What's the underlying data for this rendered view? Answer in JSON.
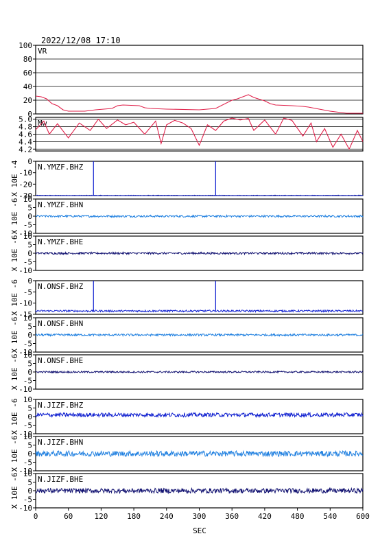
{
  "header": {
    "timestamp": "2022/12/08 17:10"
  },
  "x_axis": {
    "label": "SEC",
    "range": [
      0,
      600
    ],
    "ticks": [
      "0",
      "60",
      "120",
      "180",
      "240",
      "300",
      "360",
      "420",
      "480",
      "540",
      "600"
    ]
  },
  "colors": {
    "vr": "#e0204a",
    "mw": "#e0204a",
    "z": "#1020d0",
    "n": "#2080e0",
    "e": "#101070"
  },
  "chart_data": [
    {
      "type": "line",
      "title": "VR",
      "ylabel": "",
      "ylim": [
        0,
        100
      ],
      "yticks": [
        "0",
        "20",
        "40",
        "60",
        "80",
        "100"
      ],
      "grid": true,
      "series": [
        {
          "x": [
            0,
            10,
            20,
            30,
            40,
            50,
            60,
            90,
            100,
            110,
            140,
            150,
            160,
            190,
            200,
            210,
            240,
            300,
            330,
            360,
            370,
            390,
            400,
            420,
            430,
            440,
            470,
            490,
            500,
            520,
            540,
            560,
            570,
            600
          ],
          "values": [
            26,
            25,
            22,
            15,
            12,
            6,
            4,
            4,
            5,
            6,
            8,
            12,
            13,
            12,
            9,
            8,
            7,
            6,
            8,
            20,
            22,
            28,
            24,
            19,
            15,
            13,
            12,
            11,
            10,
            7,
            4,
            2,
            1,
            1
          ]
        }
      ]
    },
    {
      "type": "line",
      "title": "Mw",
      "ylabel": "",
      "ylim": [
        4.15,
        5.05
      ],
      "yticks": [
        "4.2",
        "4.4",
        "4.6",
        "4.8",
        "5.0"
      ],
      "grid": true,
      "series": [
        {
          "x": [
            0,
            15,
            25,
            40,
            60,
            80,
            100,
            115,
            130,
            150,
            165,
            180,
            200,
            220,
            230,
            240,
            255,
            270,
            285,
            300,
            315,
            330,
            345,
            360,
            375,
            390,
            400,
            420,
            440,
            455,
            470,
            490,
            505,
            515,
            530,
            545,
            560,
            575,
            590,
            600
          ],
          "values": [
            4.72,
            4.95,
            4.6,
            4.88,
            4.5,
            4.9,
            4.7,
            5.0,
            4.75,
            4.98,
            4.85,
            4.92,
            4.6,
            4.95,
            4.35,
            4.85,
            4.97,
            4.9,
            4.75,
            4.3,
            4.85,
            4.7,
            4.95,
            5.03,
            4.98,
            5.02,
            4.7,
            4.98,
            4.6,
            5.03,
            4.97,
            4.55,
            4.9,
            4.4,
            4.75,
            4.25,
            4.6,
            4.2,
            4.7,
            4.4
          ]
        }
      ]
    },
    {
      "type": "line",
      "title": "N.YMZF.BHZ",
      "ylabel": "X 10E -4",
      "ylim": [
        -30,
        0
      ],
      "yticks": [
        "-30",
        "-20",
        "-10",
        "0"
      ],
      "flipped": true,
      "component": "z",
      "baseline": -30,
      "spikes": [
        [
          106,
          0
        ],
        [
          330,
          0
        ]
      ],
      "noise_amp": 0.4
    },
    {
      "type": "line",
      "title": "N.YMZF.BHN",
      "ylabel": "X 10E -6",
      "ylim": [
        -10,
        10
      ],
      "yticks": [
        "-10",
        "-5",
        "0",
        "5",
        "10"
      ],
      "component": "n",
      "baseline": 0,
      "noise_amp": 0.6
    },
    {
      "type": "line",
      "title": "N.YMZF.BHE",
      "ylabel": "X 10E -6",
      "ylim": [
        -10,
        10
      ],
      "yticks": [
        "-10",
        "-5",
        "0",
        "5",
        "10"
      ],
      "component": "e",
      "baseline": 0,
      "noise_amp": 0.6
    },
    {
      "type": "line",
      "title": "N.ONSF.BHZ",
      "ylabel": "X 10E -6",
      "ylim": [
        -15,
        0
      ],
      "yticks": [
        "-15",
        "-10",
        "-5",
        "0"
      ],
      "flipped": true,
      "component": "z",
      "baseline": -13.5,
      "spikes": [
        [
          106,
          0
        ],
        [
          330,
          0
        ]
      ],
      "noise_amp": 0.4
    },
    {
      "type": "line",
      "title": "N.ONSF.BHN",
      "ylabel": "X 10E -6",
      "ylim": [
        -10,
        10
      ],
      "yticks": [
        "-10",
        "-5",
        "0",
        "5",
        "10"
      ],
      "component": "n",
      "baseline": 0,
      "noise_amp": 0.6
    },
    {
      "type": "line",
      "title": "N.ONSF.BHE",
      "ylabel": "X 10E -6",
      "ylim": [
        -10,
        10
      ],
      "yticks": [
        "-10",
        "-5",
        "0",
        "5",
        "10"
      ],
      "component": "e",
      "baseline": 0,
      "noise_amp": 0.5
    },
    {
      "type": "line",
      "title": "N.JIZF.BHZ",
      "ylabel": "X 10E -6",
      "ylim": [
        -10,
        10
      ],
      "yticks": [
        "-10",
        "-5",
        "0",
        "5",
        "10"
      ],
      "component": "z",
      "baseline": 1,
      "noise_amp": 1.2
    },
    {
      "type": "line",
      "title": "N.JIZF.BHN",
      "ylabel": "X 10E -6",
      "ylim": [
        -10,
        10
      ],
      "yticks": [
        "-10",
        "-5",
        "0",
        "5",
        "10"
      ],
      "component": "n",
      "baseline": 0,
      "noise_amp": 1.6
    },
    {
      "type": "line",
      "title": "N.JIZF.BHE",
      "ylabel": "X 10E -6",
      "ylim": [
        -10,
        10
      ],
      "yticks": [
        "-10",
        "-5",
        "0",
        "5",
        "10"
      ],
      "component": "e",
      "baseline": 0,
      "noise_amp": 1.4
    }
  ]
}
